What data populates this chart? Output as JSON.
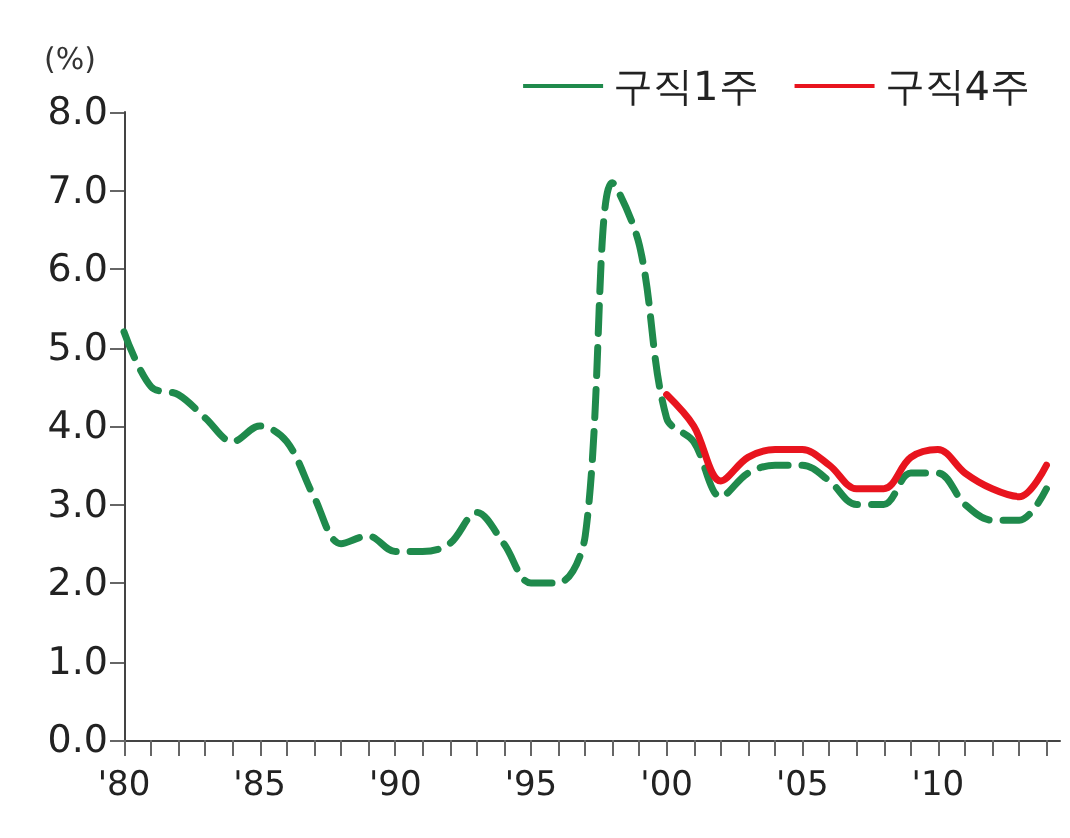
{
  "chart_data": {
    "type": "line",
    "ylabel": "(%)",
    "x": [
      1980,
      1981,
      1982,
      1983,
      1984,
      1985,
      1986,
      1987,
      1988,
      1989,
      1990,
      1991,
      1992,
      1993,
      1994,
      1995,
      1996,
      1997,
      1998,
      1999,
      2000,
      2001,
      2002,
      2003,
      2004,
      2005,
      2006,
      2007,
      2008,
      2009,
      2010,
      2011,
      2012,
      2013,
      2014
    ],
    "series": [
      {
        "name": "구직1주",
        "color": "#1f8a4c",
        "line_style": "dashed",
        "values": [
          5.2,
          4.5,
          4.4,
          4.1,
          3.8,
          4.0,
          3.8,
          3.1,
          2.5,
          2.6,
          2.4,
          2.4,
          2.5,
          2.9,
          2.5,
          2.0,
          2.0,
          2.6,
          7.1,
          6.3,
          4.1,
          3.8,
          3.1,
          3.4,
          3.5,
          3.5,
          3.3,
          3.0,
          3.0,
          3.4,
          3.4,
          3.0,
          2.8,
          2.8,
          3.2
        ]
      },
      {
        "name": "구직4주",
        "color": "#e8141e",
        "line_style": "solid",
        "values": [
          null,
          null,
          null,
          null,
          null,
          null,
          null,
          null,
          null,
          null,
          null,
          null,
          null,
          null,
          null,
          null,
          null,
          null,
          null,
          null,
          4.4,
          4.0,
          3.3,
          3.6,
          3.7,
          3.7,
          3.5,
          3.2,
          3.2,
          3.6,
          3.7,
          3.4,
          3.2,
          3.1,
          3.5
        ]
      }
    ],
    "xlim": [
      1980,
      2014.5
    ],
    "xticks": [
      {
        "value": 1980,
        "label": "'80"
      },
      {
        "value": 1981,
        "label": null
      },
      {
        "value": 1982,
        "label": null
      },
      {
        "value": 1983,
        "label": null
      },
      {
        "value": 1984,
        "label": null
      },
      {
        "value": 1985,
        "label": "'85"
      },
      {
        "value": 1986,
        "label": null
      },
      {
        "value": 1987,
        "label": null
      },
      {
        "value": 1988,
        "label": null
      },
      {
        "value": 1989,
        "label": null
      },
      {
        "value": 1990,
        "label": "'90"
      },
      {
        "value": 1991,
        "label": null
      },
      {
        "value": 1992,
        "label": null
      },
      {
        "value": 1993,
        "label": null
      },
      {
        "value": 1994,
        "label": null
      },
      {
        "value": 1995,
        "label": "'95"
      },
      {
        "value": 1996,
        "label": null
      },
      {
        "value": 1997,
        "label": null
      },
      {
        "value": 1998,
        "label": null
      },
      {
        "value": 1999,
        "label": null
      },
      {
        "value": 2000,
        "label": "'00"
      },
      {
        "value": 2001,
        "label": null
      },
      {
        "value": 2002,
        "label": null
      },
      {
        "value": 2003,
        "label": null
      },
      {
        "value": 2004,
        "label": null
      },
      {
        "value": 2005,
        "label": "'05"
      },
      {
        "value": 2006,
        "label": null
      },
      {
        "value": 2007,
        "label": null
      },
      {
        "value": 2008,
        "label": null
      },
      {
        "value": 2009,
        "label": null
      },
      {
        "value": 2010,
        "label": "'10"
      },
      {
        "value": 2011,
        "label": null
      },
      {
        "value": 2012,
        "label": null
      },
      {
        "value": 2013,
        "label": null
      },
      {
        "value": 2014,
        "label": null
      }
    ],
    "ylim": [
      0,
      8
    ],
    "yticks": [
      {
        "value": 0,
        "label": "0.0"
      },
      {
        "value": 1,
        "label": "1.0"
      },
      {
        "value": 2,
        "label": "2.0"
      },
      {
        "value": 3,
        "label": "3.0"
      },
      {
        "value": 4,
        "label": "4.0"
      },
      {
        "value": 5,
        "label": "5.0"
      },
      {
        "value": 6,
        "label": "6.0"
      },
      {
        "value": 7,
        "label": "7.0"
      },
      {
        "value": 8,
        "label": "8.0"
      }
    ],
    "grid": false,
    "legend": "top right",
    "marker": "none"
  }
}
